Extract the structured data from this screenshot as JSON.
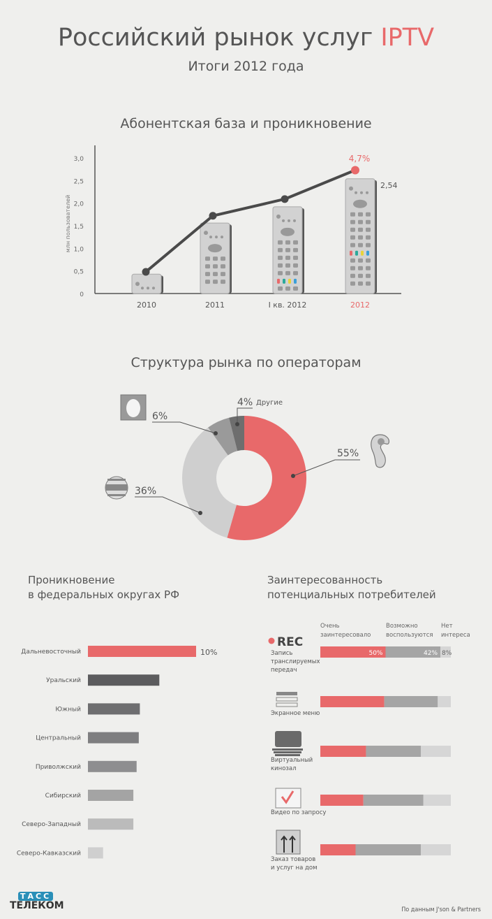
{
  "header": {
    "title_main": "Российский рынок услуг ",
    "title_accent": "IPTV",
    "subtitle": "Итоги 2012 года"
  },
  "colors": {
    "accent": "#e8696a",
    "text": "#555555",
    "dark": "#4a4a4a",
    "background": "#efefed"
  },
  "chart_data": [
    {
      "type": "bar",
      "title": "Абонентская база и проникновение",
      "ylabel": "млн пользователей",
      "ylim": [
        0,
        3.0
      ],
      "yticks": [
        "0",
        "0,5",
        "1,0",
        "1,5",
        "2,0",
        "2,5",
        "3,0"
      ],
      "categories": [
        "2010",
        "2011",
        "I кв. 2012",
        "2012"
      ],
      "series": [
        {
          "type": "bar",
          "values": [
            0.43,
            1.56,
            1.92,
            2.54
          ],
          "style": "tv-remote"
        },
        {
          "type": "line",
          "values": [
            0.48,
            1.72,
            2.09,
            2.73
          ]
        }
      ],
      "annotations": {
        "value_label": "2,54",
        "penetration_label": "4,7%"
      },
      "highlight_category": "2012"
    },
    {
      "type": "pie",
      "style": "donut",
      "title": "Структура рынка по операторам",
      "slices": [
        {
          "label": "55%",
          "value": 55,
          "color": "#e8696a",
          "icon": "rostelecom-logo-icon"
        },
        {
          "label": "36%",
          "value": 36,
          "color": "#cfcfcf",
          "icon": "striped-circle-logo-icon"
        },
        {
          "label": "6%",
          "value": 6,
          "color": "#9a9a9a",
          "icon": "egg-logo-icon"
        },
        {
          "label": "4%",
          "name": "Другие",
          "value": 4,
          "color": "#6e6e6e"
        }
      ]
    },
    {
      "type": "bar",
      "orientation": "horizontal",
      "title": "Проникновение\nв федеральных округах РФ",
      "title_lines": [
        "Проникновение",
        "в федеральных округах РФ"
      ],
      "categories": [
        "Дальневосточный",
        "Уральский",
        "Южный",
        "Центральный",
        "Приволжский",
        "Сибирский",
        "Северо-Западный",
        "Северо-Кавказский"
      ],
      "values": [
        10,
        6.6,
        4.8,
        4.7,
        4.5,
        4.2,
        4.2,
        1.4
      ],
      "colors": [
        "#e8696a",
        "#5c5c5e",
        "#6e6e70",
        "#7e7e80",
        "#8e8e90",
        "#a4a4a4",
        "#bbbbbb",
        "#cfcfcf"
      ],
      "value_label": "10%"
    },
    {
      "type": "bar",
      "orientation": "horizontal",
      "stacked": true,
      "title_lines": [
        "Заинтересованность",
        "потенциальных потребителей"
      ],
      "legend": [
        "Очень заинтересовало",
        "Возможно воспользуются",
        "Нет интереса"
      ],
      "legend_lines": [
        [
          "Очень",
          "заинтересовало"
        ],
        [
          "Возможно",
          "воспользуются"
        ],
        [
          "Нет",
          "интереса"
        ]
      ],
      "categories": [
        "Запись транслируемых передач",
        "Экранное меню",
        "Виртуальный кинозал",
        "Видео по запросу",
        "Заказ товаров и услуг на дом"
      ],
      "category_lines": [
        [
          "Запись",
          "транслируемых",
          "передач"
        ],
        [
          "Экранное меню"
        ],
        [
          "Виртуальный",
          "кинозал"
        ],
        [
          "Видео по запросу"
        ],
        [
          "Заказ товаров",
          "и услуг на дом"
        ]
      ],
      "icons": [
        "rec-icon",
        "menu-icon",
        "cinema-icon",
        "calendar-check-icon",
        "package-icon"
      ],
      "rec_label": "REC",
      "series": [
        {
          "name": "Очень заинтересовало",
          "color": "#e8696a",
          "values": [
            50,
            49,
            35,
            33,
            27
          ]
        },
        {
          "name": "Возможно воспользуются",
          "color": "#a5a5a5",
          "values": [
            42,
            41,
            42,
            46,
            50
          ]
        },
        {
          "name": "Нет интереса",
          "color": "#d6d6d6",
          "values": [
            8,
            10,
            23,
            21,
            23
          ]
        }
      ],
      "data_labels": [
        "50%",
        "42%",
        "8%"
      ]
    }
  ],
  "footer": {
    "logo_top": "ТАСС",
    "logo_bottom": "ТЕЛЕКОМ",
    "source": "По данным J'son & Partners"
  }
}
